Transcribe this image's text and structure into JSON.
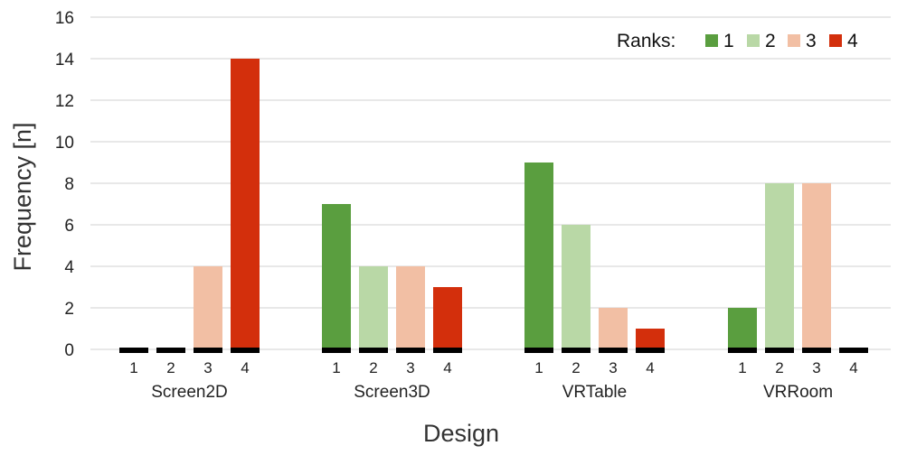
{
  "chart_data": {
    "type": "bar",
    "title": "",
    "xlabel": "Design",
    "ylabel": "Frequency [n]",
    "ylim": [
      0,
      16
    ],
    "yticks": [
      0,
      2,
      4,
      6,
      8,
      10,
      12,
      14,
      16
    ],
    "grid": true,
    "legend_title": "Ranks:",
    "legend_position": "top-right",
    "series": [
      {
        "name": "1",
        "color": "#5a9e3f"
      },
      {
        "name": "2",
        "color": "#b9d8a6"
      },
      {
        "name": "3",
        "color": "#f2bfa4"
      },
      {
        "name": "4",
        "color": "#d32f0c"
      }
    ],
    "groups": [
      {
        "label": "Screen2D",
        "ranks": [
          "1",
          "2",
          "3",
          "4"
        ],
        "values": [
          0,
          0,
          4,
          14
        ]
      },
      {
        "label": "Screen3D",
        "ranks": [
          "1",
          "2",
          "3",
          "4"
        ],
        "values": [
          7,
          4,
          4,
          3
        ]
      },
      {
        "label": "VRTable",
        "ranks": [
          "1",
          "2",
          "3",
          "4"
        ],
        "values": [
          9,
          6,
          2,
          1
        ]
      },
      {
        "label": "VRRoom",
        "ranks": [
          "1",
          "2",
          "3",
          "4"
        ],
        "values": [
          2,
          8,
          8,
          0
        ]
      }
    ]
  }
}
